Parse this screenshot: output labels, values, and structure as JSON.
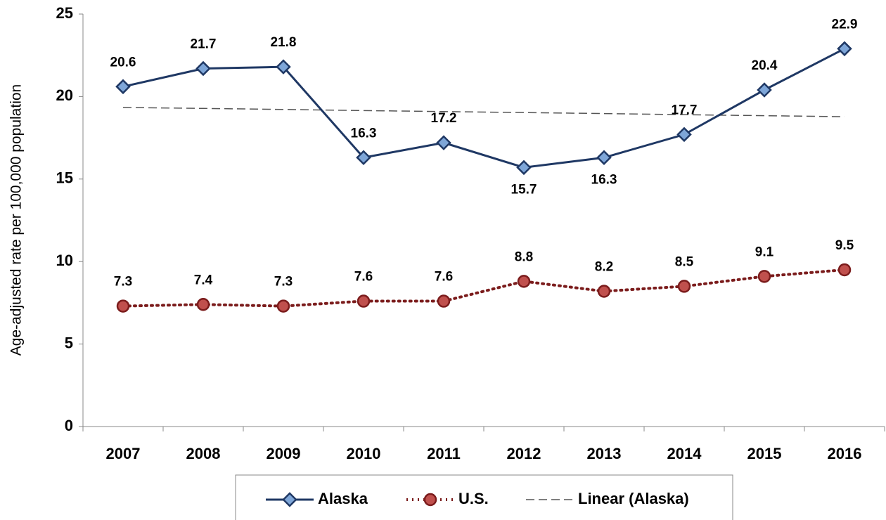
{
  "chart_data": {
    "type": "line",
    "y_axis_label": "Age-adjusted rate per 100,000 population",
    "categories": [
      "2007",
      "2008",
      "2009",
      "2010",
      "2011",
      "2012",
      "2013",
      "2014",
      "2015",
      "2016"
    ],
    "series": [
      {
        "name": "Alaska",
        "color": "#1f3864",
        "marker_color": "#7ea6d8",
        "marker": "diamond",
        "style": "solid",
        "values": [
          20.6,
          21.7,
          21.8,
          16.3,
          17.2,
          15.7,
          16.3,
          17.7,
          20.4,
          22.9
        ]
      },
      {
        "name": "U.S.",
        "color": "#7b1c1c",
        "marker_color": "#c0504d",
        "marker": "circle",
        "style": "dotted",
        "values": [
          7.3,
          7.4,
          7.3,
          7.6,
          7.6,
          8.8,
          8.2,
          8.5,
          9.1,
          9.5
        ]
      },
      {
        "name": "Linear (Alaska)",
        "color": "#555555",
        "marker": "none",
        "style": "dashed",
        "data_labels": false,
        "values": [
          19.34,
          19.28,
          19.22,
          19.15,
          19.09,
          19.03,
          18.97,
          18.9,
          18.84,
          18.78
        ]
      }
    ],
    "ylim": [
      0,
      25
    ],
    "yticks": [
      0,
      5,
      10,
      15,
      20,
      25
    ],
    "grid": false,
    "legend": "bottom"
  }
}
